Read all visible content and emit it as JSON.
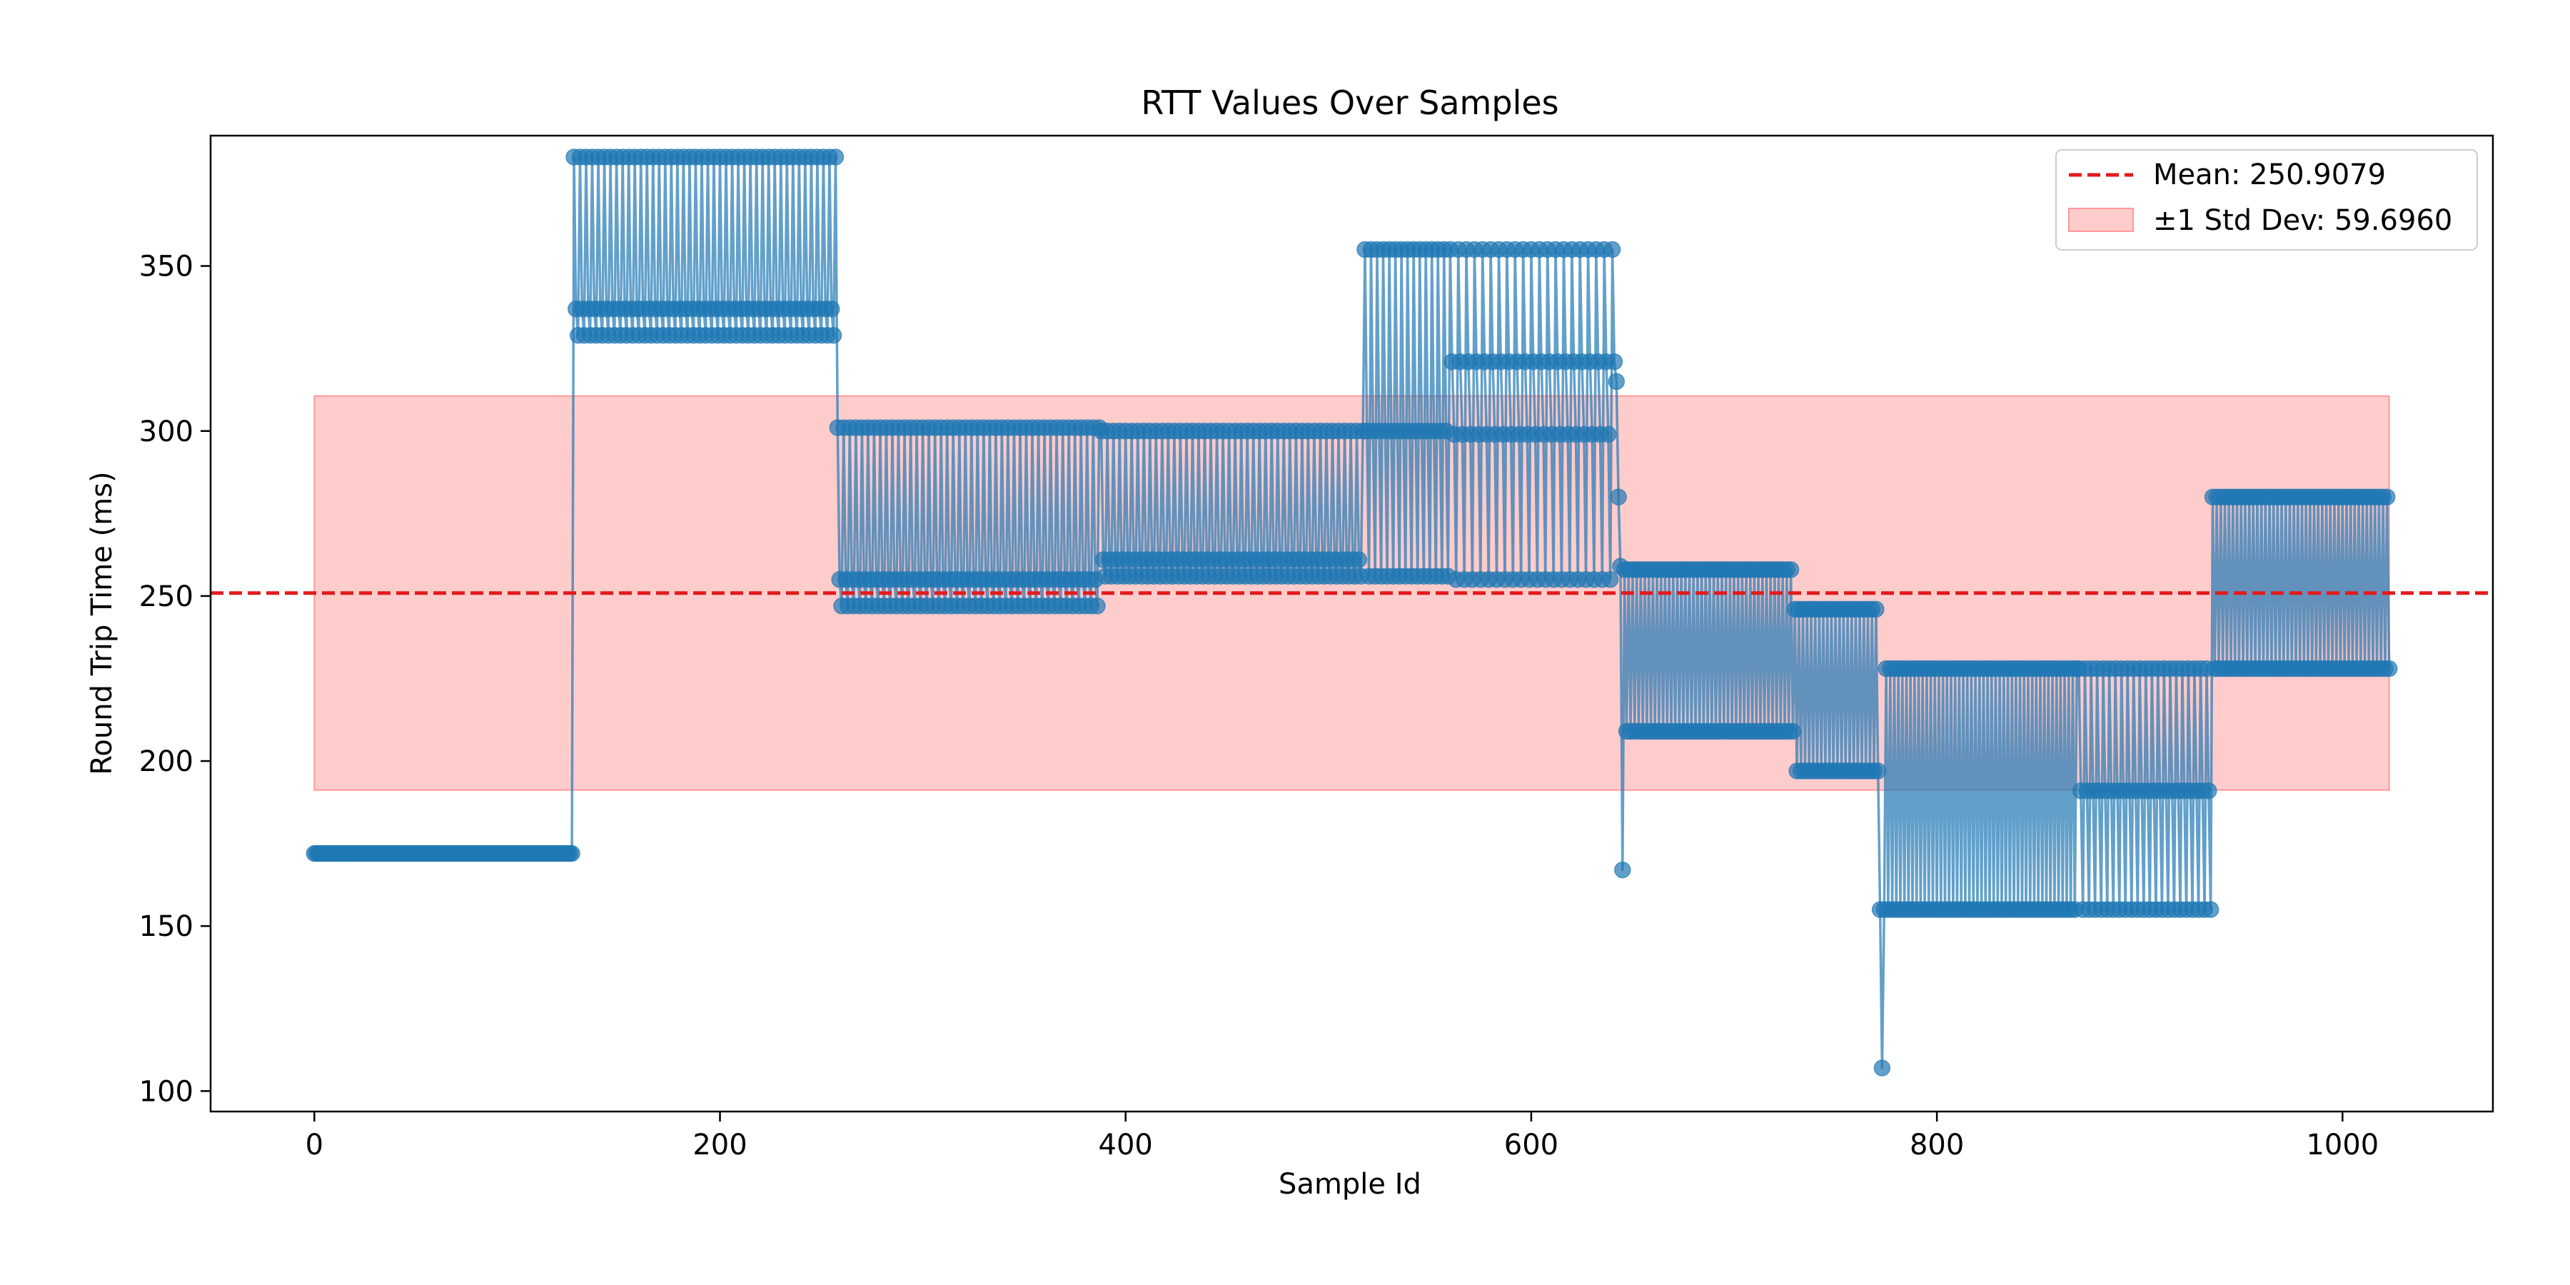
{
  "colors": {
    "series": "#1f77b4",
    "mean_line": "#e41a1c",
    "band_fill": "#ff9999",
    "axes": "#000000"
  },
  "chart_data": {
    "type": "line",
    "title": "RTT Values Over Samples",
    "xlabel": "Sample Id",
    "ylabel": "Round Trip Time (ms)",
    "xlim": [
      -51.15,
      1074.15
    ],
    "ylim": [
      93.8,
      389.5
    ],
    "xticks": [
      0,
      200,
      400,
      600,
      800,
      1000
    ],
    "yticks": [
      100,
      150,
      200,
      250,
      300,
      350
    ],
    "grid": false,
    "legend_position": "top-right",
    "markers": "circle",
    "mean": 250.9079,
    "std": 59.696,
    "legend": [
      "Mean: 250.9079",
      "±1 Std Dev: 59.6960"
    ],
    "n_samples": 1024,
    "segments": [
      {
        "start": 0,
        "end": 128,
        "levels": [
          172,
          172
        ]
      },
      {
        "start": 128,
        "end": 258,
        "levels": [
          383,
          337,
          329
        ]
      },
      {
        "start": 258,
        "end": 388,
        "levels": [
          301,
          255,
          247
        ]
      },
      {
        "start": 388,
        "end": 518,
        "levels": [
          300,
          261,
          256
        ]
      },
      {
        "start": 518,
        "end": 560,
        "levels": [
          355,
          300,
          256
        ]
      },
      {
        "start": 560,
        "end": 642,
        "levels": [
          355,
          321,
          299,
          255
        ]
      },
      {
        "start": 642,
        "end": 644,
        "levels": [
          315,
          280
        ]
      },
      {
        "start": 644,
        "end": 645,
        "levels": [
          259
        ]
      },
      {
        "start": 645,
        "end": 646,
        "levels": [
          167
        ]
      },
      {
        "start": 646,
        "end": 730,
        "levels": [
          258,
          209
        ]
      },
      {
        "start": 730,
        "end": 772,
        "levels": [
          246,
          197
        ]
      },
      {
        "start": 772,
        "end": 775,
        "levels": [
          155,
          107
        ]
      },
      {
        "start": 775,
        "end": 870,
        "levels": [
          228,
          155
        ]
      },
      {
        "start": 870,
        "end": 936,
        "levels": [
          228,
          191,
          155
        ]
      },
      {
        "start": 936,
        "end": 1024,
        "levels": [
          280,
          228
        ]
      }
    ]
  }
}
